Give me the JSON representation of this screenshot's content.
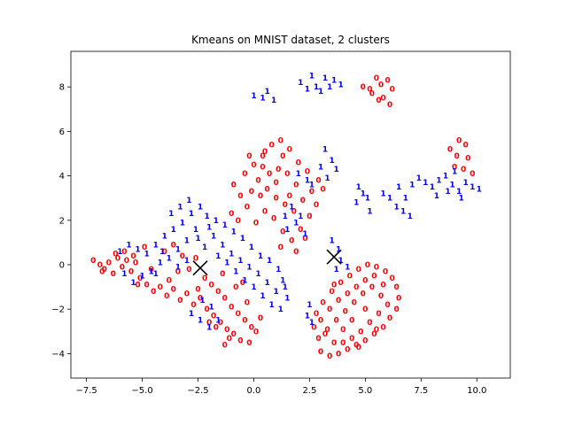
{
  "chart_data": {
    "type": "scatter",
    "title": "Kmeans on MNIST dataset, 2 clusters",
    "xlabel": "",
    "ylabel": "",
    "xlim": [
      -8.2,
      11.5
    ],
    "ylim": [
      -5.1,
      9.6
    ],
    "x_ticks": [
      -7.5,
      -5.0,
      -2.5,
      0.0,
      2.5,
      5.0,
      7.5,
      10.0
    ],
    "x_tick_labels": [
      "−7.5",
      "−5.0",
      "−2.5",
      "0.0",
      "2.5",
      "5.0",
      "7.5",
      "10.0"
    ],
    "y_ticks": [
      -4,
      -2,
      0,
      2,
      4,
      6,
      8
    ],
    "y_tick_labels": [
      "−4",
      "−2",
      "0",
      "2",
      "4",
      "6",
      "8"
    ],
    "grid": false,
    "series": [
      {
        "label": "0",
        "color": "#ff0000",
        "points": [
          [
            4.9,
            8.0
          ],
          [
            5.2,
            7.9
          ],
          [
            5.7,
            8.1
          ],
          [
            5.5,
            8.4
          ],
          [
            6.0,
            8.3
          ],
          [
            5.3,
            7.7
          ],
          [
            6.2,
            7.9
          ],
          [
            5.8,
            7.5
          ],
          [
            6.1,
            7.2
          ],
          [
            5.6,
            7.4
          ],
          [
            8.8,
            5.2
          ],
          [
            9.2,
            5.6
          ],
          [
            9.5,
            5.4
          ],
          [
            9.1,
            4.9
          ],
          [
            9.6,
            4.8
          ],
          [
            9.4,
            4.3
          ],
          [
            9.8,
            4.1
          ],
          [
            9.0,
            4.4
          ],
          [
            -7.2,
            0.2
          ],
          [
            -6.9,
            0.0
          ],
          [
            -6.7,
            -0.2
          ],
          [
            -6.5,
            0.1
          ],
          [
            -6.3,
            -0.4
          ],
          [
            -6.1,
            0.3
          ],
          [
            -5.9,
            -0.1
          ],
          [
            -5.7,
            0.2
          ],
          [
            -5.5,
            -0.3
          ],
          [
            -5.3,
            0.1
          ],
          [
            -6.8,
            -0.3
          ],
          [
            -6.2,
            0.5
          ],
          [
            -5.8,
            0.6
          ],
          [
            -5.4,
            0.4
          ],
          [
            -5.1,
            -0.6
          ],
          [
            -4.8,
            -0.9
          ],
          [
            -4.5,
            -1.2
          ],
          [
            -4.2,
            -1.0
          ],
          [
            -3.9,
            -1.4
          ],
          [
            -3.6,
            -1.1
          ],
          [
            -3.3,
            -1.6
          ],
          [
            -3.0,
            -1.3
          ],
          [
            -2.7,
            -1.8
          ],
          [
            -2.4,
            -1.5
          ],
          [
            -2.1,
            -2.0
          ],
          [
            -1.8,
            -2.3
          ],
          [
            -1.5,
            -2.6
          ],
          [
            -1.2,
            -2.9
          ],
          [
            -0.9,
            -3.1
          ],
          [
            -0.6,
            -3.4
          ],
          [
            -2.2,
            -0.6
          ],
          [
            -1.9,
            -0.9
          ],
          [
            -1.6,
            -1.2
          ],
          [
            -1.3,
            -1.5
          ],
          [
            -1.0,
            -1.9
          ],
          [
            -0.7,
            -2.2
          ],
          [
            -0.4,
            -2.5
          ],
          [
            -0.1,
            -2.8
          ],
          [
            0.1,
            -3.0
          ],
          [
            -2.0,
            -2.6
          ],
          [
            -3.2,
            0.4
          ],
          [
            -3.6,
            0.9
          ],
          [
            -4.0,
            0.6
          ],
          [
            -2.9,
            -0.2
          ],
          [
            -2.6,
            0.3
          ],
          [
            -1.4,
            -0.4
          ],
          [
            -0.8,
            -1.0
          ],
          [
            -0.3,
            -1.7
          ],
          [
            -1.1,
            -3.3
          ],
          [
            -0.2,
            -3.5
          ],
          [
            -4.6,
            -0.2
          ],
          [
            -4.9,
            0.8
          ],
          [
            -5.2,
            -0.9
          ],
          [
            -3.8,
            -0.7
          ],
          [
            -3.4,
            -0.3
          ],
          [
            -2.5,
            -1.1
          ],
          [
            -1.7,
            -2.8
          ],
          [
            -1.3,
            -3.6
          ],
          [
            0.3,
            -2.4
          ],
          [
            -0.5,
            -0.8
          ],
          [
            0.0,
            4.5
          ],
          [
            0.4,
            4.9
          ],
          [
            0.8,
            5.4
          ],
          [
            1.2,
            5.6
          ],
          [
            1.6,
            5.2
          ],
          [
            0.2,
            3.8
          ],
          [
            0.6,
            3.4
          ],
          [
            1.0,
            3.0
          ],
          [
            1.4,
            2.7
          ],
          [
            1.8,
            2.4
          ],
          [
            2.2,
            2.9
          ],
          [
            2.6,
            3.3
          ],
          [
            2.9,
            3.8
          ],
          [
            2.4,
            4.2
          ],
          [
            2.0,
            4.6
          ],
          [
            1.5,
            4.1
          ],
          [
            1.1,
            4.3
          ],
          [
            0.7,
            4.1
          ],
          [
            0.3,
            3.1
          ],
          [
            -0.3,
            2.6
          ],
          [
            -0.6,
            3.1
          ],
          [
            -0.9,
            3.6
          ],
          [
            -0.4,
            4.1
          ],
          [
            -0.2,
            4.9
          ],
          [
            0.5,
            5.1
          ],
          [
            1.3,
            4.9
          ],
          [
            1.9,
            3.6
          ],
          [
            2.5,
            2.2
          ],
          [
            2.1,
            1.6
          ],
          [
            1.7,
            1.1
          ],
          [
            1.3,
            1.5
          ],
          [
            0.9,
            2.1
          ],
          [
            0.5,
            2.4
          ],
          [
            -0.1,
            3.3
          ],
          [
            1.6,
            3.1
          ],
          [
            1.0,
            3.7
          ],
          [
            0.4,
            4.4
          ],
          [
            2.8,
            2.7
          ],
          [
            3.1,
            3.4
          ],
          [
            1.2,
            0.8
          ],
          [
            2.3,
            1.2
          ],
          [
            1.9,
            0.6
          ],
          [
            -1.0,
            2.3
          ],
          [
            -0.7,
            2.0
          ],
          [
            0.1,
            1.9
          ],
          [
            3.0,
            -3.9
          ],
          [
            3.4,
            -4.1
          ],
          [
            3.8,
            -4.0
          ],
          [
            4.2,
            -3.8
          ],
          [
            4.6,
            -3.6
          ],
          [
            5.0,
            -3.4
          ],
          [
            5.4,
            -3.1
          ],
          [
            5.8,
            -2.8
          ],
          [
            6.1,
            -2.4
          ],
          [
            6.4,
            -2.0
          ],
          [
            6.5,
            -1.5
          ],
          [
            6.4,
            -1.0
          ],
          [
            6.2,
            -0.6
          ],
          [
            5.9,
            -0.3
          ],
          [
            5.5,
            -0.1
          ],
          [
            5.1,
            0.0
          ],
          [
            4.7,
            -0.2
          ],
          [
            4.3,
            -0.5
          ],
          [
            3.9,
            -0.8
          ],
          [
            3.5,
            -1.2
          ],
          [
            3.1,
            -1.7
          ],
          [
            2.8,
            -2.2
          ],
          [
            2.7,
            -2.8
          ],
          [
            2.9,
            -3.3
          ],
          [
            3.3,
            -2.9
          ],
          [
            3.7,
            -2.5
          ],
          [
            4.1,
            -2.1
          ],
          [
            4.5,
            -1.7
          ],
          [
            4.9,
            -1.3
          ],
          [
            5.3,
            -1.0
          ],
          [
            5.7,
            -1.4
          ],
          [
            6.0,
            -1.8
          ],
          [
            5.6,
            -2.2
          ],
          [
            5.2,
            -2.6
          ],
          [
            4.8,
            -3.0
          ],
          [
            4.4,
            -3.3
          ],
          [
            4.0,
            -3.5
          ],
          [
            3.6,
            -3.5
          ],
          [
            3.2,
            -3.1
          ],
          [
            3.0,
            -2.5
          ],
          [
            3.4,
            -2.0
          ],
          [
            3.8,
            -1.6
          ],
          [
            4.2,
            -1.3
          ],
          [
            4.6,
            -1.0
          ],
          [
            5.0,
            -0.7
          ],
          [
            5.4,
            -0.5
          ],
          [
            5.8,
            -0.9
          ],
          [
            4.4,
            -2.5
          ],
          [
            4.0,
            -2.9
          ],
          [
            5.0,
            -2.0
          ],
          [
            3.6,
            -0.9
          ],
          [
            4.7,
            -3.7
          ],
          [
            5.5,
            -2.9
          ]
        ]
      },
      {
        "label": "1",
        "color": "#0000ff",
        "points": [
          [
            0.0,
            7.6
          ],
          [
            0.4,
            7.5
          ],
          [
            0.9,
            7.4
          ],
          [
            0.6,
            7.8
          ],
          [
            2.1,
            8.2
          ],
          [
            2.4,
            7.9
          ],
          [
            2.8,
            8.0
          ],
          [
            3.2,
            8.4
          ],
          [
            3.4,
            8.0
          ],
          [
            3.6,
            8.3
          ],
          [
            3.9,
            8.1
          ],
          [
            2.6,
            8.5
          ],
          [
            3.0,
            7.8
          ],
          [
            2.4,
            3.8
          ],
          [
            2.0,
            4.1
          ],
          [
            3.2,
            5.2
          ],
          [
            3.5,
            4.7
          ],
          [
            3.7,
            4.3
          ],
          [
            3.3,
            3.9
          ],
          [
            3.0,
            4.4
          ],
          [
            4.7,
            3.5
          ],
          [
            4.9,
            3.2
          ],
          [
            5.1,
            3.0
          ],
          [
            4.6,
            2.8
          ],
          [
            5.2,
            2.4
          ],
          [
            5.8,
            3.2
          ],
          [
            6.1,
            3.0
          ],
          [
            6.4,
            2.6
          ],
          [
            6.7,
            2.4
          ],
          [
            7.0,
            2.2
          ],
          [
            6.8,
            3.0
          ],
          [
            6.5,
            3.5
          ],
          [
            7.1,
            3.6
          ],
          [
            7.4,
            3.9
          ],
          [
            7.7,
            3.7
          ],
          [
            8.0,
            3.5
          ],
          [
            8.3,
            3.8
          ],
          [
            8.6,
            4.0
          ],
          [
            8.9,
            3.6
          ],
          [
            9.2,
            3.3
          ],
          [
            9.5,
            3.7
          ],
          [
            9.8,
            3.5
          ],
          [
            10.1,
            3.4
          ],
          [
            9.0,
            4.2
          ],
          [
            8.7,
            3.3
          ],
          [
            9.3,
            3.0
          ],
          [
            8.2,
            3.1
          ],
          [
            -6.0,
            0.6
          ],
          [
            -5.6,
            0.9
          ],
          [
            -5.2,
            0.7
          ],
          [
            -4.8,
            0.5
          ],
          [
            -4.4,
            0.9
          ],
          [
            -4.0,
            1.3
          ],
          [
            -3.6,
            1.6
          ],
          [
            -3.2,
            1.9
          ],
          [
            -2.8,
            2.3
          ],
          [
            -2.4,
            2.6
          ],
          [
            -2.1,
            2.2
          ],
          [
            -2.6,
            1.6
          ],
          [
            -3.0,
            1.1
          ],
          [
            -3.4,
            0.7
          ],
          [
            -3.8,
            0.3
          ],
          [
            -4.2,
            0.1
          ],
          [
            -4.6,
            -0.3
          ],
          [
            -5.0,
            -0.5
          ],
          [
            -5.4,
            -0.8
          ],
          [
            -5.8,
            -0.4
          ],
          [
            -3.7,
            2.3
          ],
          [
            -3.3,
            2.6
          ],
          [
            -2.9,
            2.9
          ],
          [
            -2.5,
            1.2
          ],
          [
            -2.2,
            0.8
          ],
          [
            -1.8,
            1.3
          ],
          [
            -1.4,
            0.9
          ],
          [
            -1.0,
            0.5
          ],
          [
            -0.6,
            0.2
          ],
          [
            -0.2,
            -0.1
          ],
          [
            0.2,
            -0.4
          ],
          [
            0.6,
            -0.8
          ],
          [
            1.0,
            -1.2
          ],
          [
            1.3,
            -0.7
          ],
          [
            1.1,
            -0.2
          ],
          [
            0.7,
            0.2
          ],
          [
            0.3,
            0.4
          ],
          [
            -0.1,
            0.8
          ],
          [
            -0.5,
            1.2
          ],
          [
            -0.9,
            1.5
          ],
          [
            -1.3,
            1.8
          ],
          [
            -1.7,
            2.0
          ],
          [
            -2.0,
            1.7
          ],
          [
            -1.6,
            0.4
          ],
          [
            -1.2,
            0.1
          ],
          [
            -0.8,
            -0.3
          ],
          [
            -0.4,
            -0.7
          ],
          [
            0.0,
            -1.0
          ],
          [
            0.4,
            -1.4
          ],
          [
            0.8,
            -1.8
          ],
          [
            1.2,
            -2.0
          ],
          [
            1.5,
            -1.5
          ],
          [
            1.4,
            -1.0
          ],
          [
            -2.8,
            -2.2
          ],
          [
            -2.4,
            -2.5
          ],
          [
            -2.0,
            -2.8
          ],
          [
            -1.6,
            -2.5
          ],
          [
            -2.3,
            -1.6
          ],
          [
            -1.9,
            -1.9
          ],
          [
            -3.4,
            -0.1
          ],
          [
            -3.0,
            0.2
          ],
          [
            -4.4,
            -0.4
          ],
          [
            -4.1,
            0.6
          ],
          [
            1.5,
            1.6
          ],
          [
            1.9,
            1.9
          ],
          [
            2.3,
            1.4
          ],
          [
            1.7,
            2.6
          ],
          [
            2.1,
            2.2
          ],
          [
            1.4,
            2.2
          ],
          [
            2.6,
            3.6
          ],
          [
            3.5,
            1.1
          ],
          [
            3.8,
            0.7
          ],
          [
            3.9,
            0.2
          ],
          [
            4.2,
            -0.1
          ],
          [
            3.7,
            -0.2
          ],
          [
            2.5,
            -1.8
          ],
          [
            2.4,
            -2.3
          ],
          [
            2.6,
            -2.6
          ]
        ]
      }
    ],
    "centroids": [
      [
        -2.4,
        -0.15
      ],
      [
        3.6,
        0.35
      ]
    ]
  }
}
